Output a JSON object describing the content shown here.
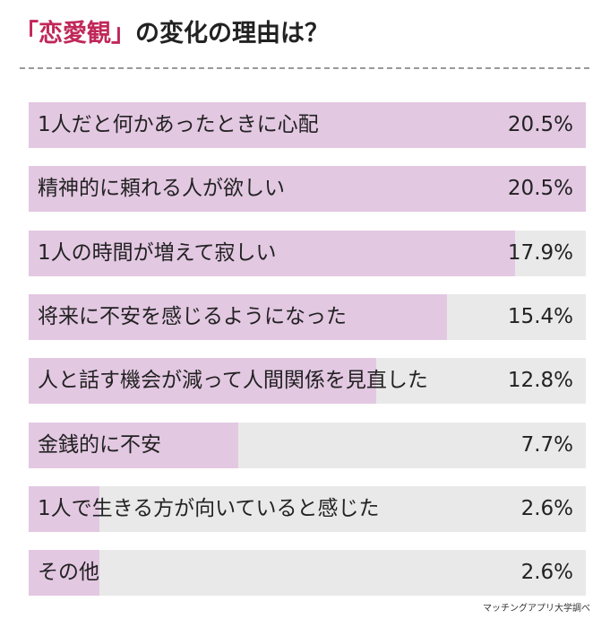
{
  "header": {
    "title_bracket_open": "「",
    "title_accent": "恋愛観",
    "title_bracket_close": "」",
    "title_rest": "の変化の理由は？"
  },
  "colors": {
    "accent": "#c0285a",
    "bar_fill": "#e3c8e2",
    "bar_track": "#e9e9e9"
  },
  "chart_data": {
    "type": "bar",
    "orientation": "horizontal",
    "title": "「恋愛観」の変化の理由は？",
    "categories": [
      "1人だと何かあったときに心配",
      "精神的に頼れる人が欲しい",
      "1人の時間が増えて寂しい",
      "将来に不安を感じるようになった",
      "人と話す機会が減って人間関係を見直した",
      "金銭的に不安",
      "1人で生きる方が向いていると感じた",
      "その他"
    ],
    "values": [
      20.5,
      20.5,
      17.9,
      15.4,
      12.8,
      7.7,
      2.6,
      2.6
    ],
    "value_labels": [
      "20.5%",
      "20.5%",
      "17.9%",
      "15.4%",
      "12.8%",
      "7.7%",
      "2.6%",
      "2.6%"
    ],
    "xlim": [
      0,
      20.5
    ],
    "grid": false,
    "legend": "none"
  },
  "footer": {
    "source": "マッチングアプリ大学調べ"
  }
}
